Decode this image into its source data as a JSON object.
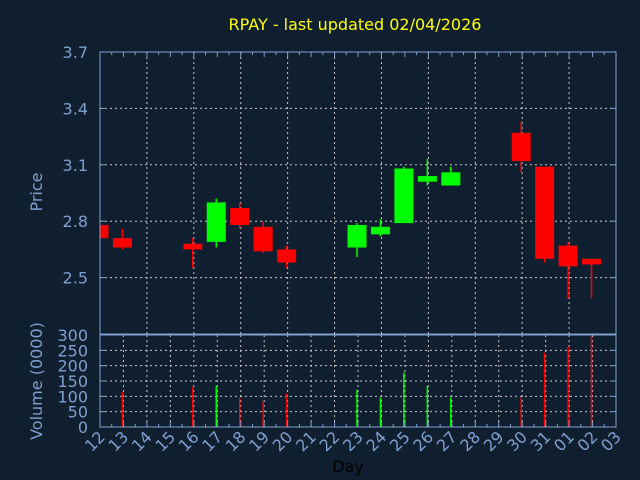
{
  "chart_data": {
    "type": "candlestick",
    "title": "RPAY - last updated 02/04/2026",
    "xlabel": "Day",
    "price_ylabel": "Price",
    "volume_ylabel": "Volume (0000)",
    "x_ticks": [
      "12",
      "13",
      "14",
      "15",
      "16",
      "17",
      "18",
      "19",
      "20",
      "21",
      "22",
      "23",
      "24",
      "25",
      "26",
      "27",
      "28",
      "29",
      "30",
      "31",
      "01",
      "02",
      "03"
    ],
    "price_ylim": [
      2.2,
      3.7
    ],
    "price_yticks": [
      "2.5",
      "2.8",
      "3.1",
      "3.4",
      "3.7"
    ],
    "volume_ylim": [
      0,
      300
    ],
    "volume_yticks": [
      "0",
      "50",
      "100",
      "150",
      "200",
      "250",
      "300"
    ],
    "grid": true,
    "colors": {
      "up": "#00ff00",
      "down": "#ff0000",
      "background": "#101f30",
      "axis": "#7f9fcf",
      "title": "#ffff00",
      "grid": "#c8c8c8"
    },
    "candles": [
      {
        "day": "12",
        "open": 2.78,
        "high": 2.78,
        "low": 2.71,
        "close": 2.71
      },
      {
        "day": "13",
        "open": 2.71,
        "high": 2.76,
        "low": 2.65,
        "close": 2.66,
        "volume": 115
      },
      {
        "day": "16",
        "open": 2.68,
        "high": 2.71,
        "low": 2.55,
        "close": 2.65,
        "volume": 131
      },
      {
        "day": "17",
        "open": 2.69,
        "high": 2.92,
        "low": 2.66,
        "close": 2.9,
        "volume": 134
      },
      {
        "day": "18",
        "open": 2.87,
        "high": 2.9,
        "low": 2.76,
        "close": 2.78,
        "volume": 96
      },
      {
        "day": "19",
        "open": 2.77,
        "high": 2.8,
        "low": 2.63,
        "close": 2.64,
        "volume": 83
      },
      {
        "day": "20",
        "open": 2.65,
        "high": 2.67,
        "low": 2.55,
        "close": 2.58,
        "volume": 109
      },
      {
        "day": "23",
        "open": 2.66,
        "high": 2.79,
        "low": 2.61,
        "close": 2.78,
        "volume": 121
      },
      {
        "day": "24",
        "open": 2.73,
        "high": 2.81,
        "low": 2.72,
        "close": 2.77,
        "volume": 95
      },
      {
        "day": "25",
        "open": 2.79,
        "high": 3.09,
        "low": 2.79,
        "close": 3.08,
        "volume": 177
      },
      {
        "day": "26",
        "open": 3.01,
        "high": 3.13,
        "low": 2.99,
        "close": 3.04,
        "volume": 134
      },
      {
        "day": "27",
        "open": 2.99,
        "high": 3.09,
        "low": 2.99,
        "close": 3.06,
        "volume": 96
      },
      {
        "day": "30",
        "open": 3.27,
        "high": 3.33,
        "low": 3.06,
        "close": 3.12,
        "volume": 96
      },
      {
        "day": "31",
        "open": 3.09,
        "high": 3.09,
        "low": 2.58,
        "close": 2.6,
        "volume": 242
      },
      {
        "day": "01",
        "open": 2.67,
        "high": 2.69,
        "low": 2.39,
        "close": 2.56,
        "volume": 262
      },
      {
        "day": "02",
        "open": 2.6,
        "high": 2.6,
        "low": 2.39,
        "close": 2.57,
        "volume": 295
      }
    ]
  }
}
